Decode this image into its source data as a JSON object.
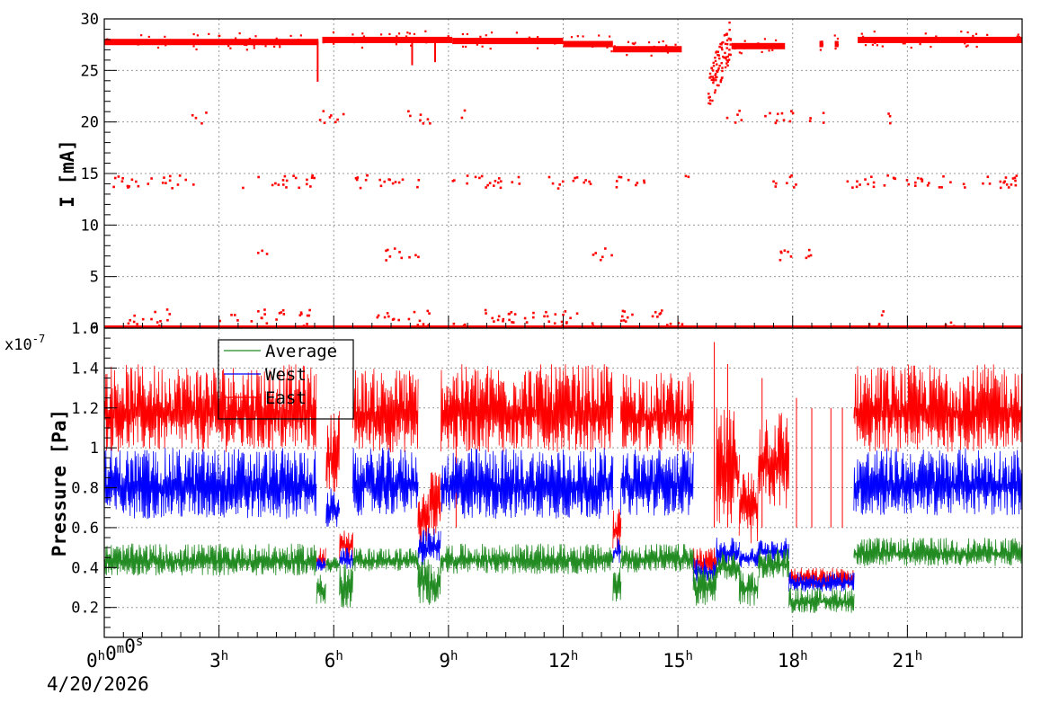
{
  "chart_data": [
    {
      "type": "scatter",
      "panel": "top",
      "ylabel": "I [mA]",
      "ylim": [
        0,
        30
      ],
      "yticks": [
        "0",
        "5",
        "10",
        "15",
        "20",
        "25",
        "30"
      ],
      "x_unit": "hours",
      "xlim": [
        0,
        24
      ],
      "grid": true,
      "series": [
        {
          "color": "#ff0000",
          "baseline_segments": [
            {
              "x": [
                0.0,
                5.6
              ],
              "y": 27.8
            },
            {
              "x": [
                5.7,
                9.1
              ],
              "y": 28.0
            },
            {
              "x": [
                9.1,
                12.0
              ],
              "y": 27.9
            },
            {
              "x": [
                12.0,
                13.3
              ],
              "y": 27.6
            },
            {
              "x": [
                13.3,
                15.1
              ],
              "y": 27.1
            },
            {
              "x": [
                16.4,
                17.8
              ],
              "y": 27.4
            },
            {
              "x": [
                18.7,
                18.8
              ],
              "y": 27.6
            },
            {
              "x": [
                19.1,
                19.2
              ],
              "y": 27.6
            },
            {
              "x": [
                19.7,
                24.0
              ],
              "y": 28.0
            }
          ],
          "dips": [
            {
              "x": 5.58,
              "y": 23.9
            },
            {
              "x": 8.05,
              "y": 25.5
            },
            {
              "x": 8.65,
              "y": 25.8
            }
          ],
          "transient": {
            "x": [
              15.8,
              16.4
            ],
            "y": [
              22.0,
              27.0
            ]
          },
          "zero_line": {
            "x": [
              0,
              24
            ],
            "y": 0
          },
          "bands": [
            {
              "y": 1.0,
              "x": [
                [
                  0.4,
                  1.8
                ],
                [
                  3.0,
                  5.4
                ],
                [
                  7.0,
                  8.6
                ],
                [
                  9.0,
                  10.8
                ],
                [
                  11.0,
                  13.0
                ],
                [
                  13.5,
                  15.3
                ],
                [
                  20.0,
                  20.5
                ],
                [
                  22.0,
                  22.3
                ]
              ]
            },
            {
              "y": 7.2,
              "x": [
                [
                  4.0,
                  4.3
                ],
                [
                  7.3,
                  8.3
                ],
                [
                  12.7,
                  13.3
                ],
                [
                  17.5,
                  18.5
                ]
              ]
            },
            {
              "y": 14.2,
              "x": [
                [
                  0.2,
                  2.5
                ],
                [
                  3.6,
                  5.5
                ],
                [
                  6.5,
                  8.3
                ],
                [
                  9.1,
                  11.0
                ],
                [
                  11.6,
                  12.8
                ],
                [
                  13.3,
                  14.2
                ],
                [
                  15.2,
                  15.4
                ],
                [
                  17.5,
                  18.3
                ],
                [
                  19.3,
                  24.0
                ]
              ]
            },
            {
              "y": 20.5,
              "x": [
                [
                  2.3,
                  2.7
                ],
                [
                  5.5,
                  6.3
                ],
                [
                  7.9,
                  8.6
                ],
                [
                  9.3,
                  9.5
                ],
                [
                  16.2,
                  16.7
                ],
                [
                  17.1,
                  18.1
                ],
                [
                  18.3,
                  18.5
                ],
                [
                  18.8,
                  19.0
                ],
                [
                  20.5,
                  20.8
                ]
              ]
            }
          ]
        }
      ]
    },
    {
      "type": "line",
      "panel": "bottom",
      "ylabel": "Pressure [Pa]",
      "y_multiplier": "x10",
      "y_multiplier_exp": "-7",
      "ylim": [
        0.05,
        1.6
      ],
      "yticks": [
        "0.2",
        "0.4",
        "0.6",
        "0.8",
        "1",
        "1.2",
        "1.4",
        "1.6"
      ],
      "x_unit": "hours",
      "xlim": [
        0,
        24
      ],
      "xticks": [
        {
          "h": "0",
          "m": "0",
          "s": "0"
        },
        {
          "h": "3"
        },
        {
          "h": "6"
        },
        {
          "h": "9"
        },
        {
          "h": "12"
        },
        {
          "h": "15"
        },
        {
          "h": "18"
        },
        {
          "h": "21"
        }
      ],
      "x_date": "4/20/2026",
      "grid": true,
      "legend": "top-left",
      "series": [
        {
          "name": "Average",
          "color": "#228b22",
          "segments": [
            {
              "x": [
                0.0,
                5.55
              ],
              "range": [
                0.33,
                0.52
              ]
            },
            {
              "x": [
                5.55,
                5.8
              ],
              "range": [
                0.16,
                0.4
              ]
            },
            {
              "x": [
                5.8,
                6.15
              ],
              "range": [
                0.36,
                0.46
              ]
            },
            {
              "x": [
                6.15,
                6.5
              ],
              "range": [
                0.16,
                0.42
              ]
            },
            {
              "x": [
                6.5,
                8.2
              ],
              "range": [
                0.36,
                0.5
              ]
            },
            {
              "x": [
                8.2,
                8.5
              ],
              "range": [
                0.18,
                0.45
              ]
            },
            {
              "x": [
                8.5,
                8.8
              ],
              "range": [
                0.17,
                0.45
              ]
            },
            {
              "x": [
                8.8,
                13.3
              ],
              "range": [
                0.34,
                0.52
              ]
            },
            {
              "x": [
                13.3,
                13.5
              ],
              "range": [
                0.2,
                0.4
              ]
            },
            {
              "x": [
                13.5,
                15.4
              ],
              "range": [
                0.35,
                0.52
              ]
            },
            {
              "x": [
                15.4,
                16.0
              ],
              "range": [
                0.16,
                0.42
              ]
            },
            {
              "x": [
                16.0,
                16.6
              ],
              "range": [
                0.3,
                0.48
              ]
            },
            {
              "x": [
                16.6,
                17.1
              ],
              "range": [
                0.17,
                0.4
              ]
            },
            {
              "x": [
                17.1,
                17.9
              ],
              "range": [
                0.32,
                0.5
              ]
            },
            {
              "x": [
                17.9,
                19.6
              ],
              "range": [
                0.15,
                0.3
              ]
            },
            {
              "x": [
                19.6,
                24.0
              ],
              "range": [
                0.38,
                0.55
              ]
            }
          ]
        },
        {
          "name": "West",
          "color": "#0000ff",
          "segments": [
            {
              "x": [
                0.0,
                5.55
              ],
              "range": [
                0.58,
                1.0
              ]
            },
            {
              "x": [
                5.55,
                5.8
              ],
              "range": [
                0.37,
                0.45
              ]
            },
            {
              "x": [
                5.8,
                6.15
              ],
              "range": [
                0.55,
                0.8
              ]
            },
            {
              "x": [
                6.15,
                6.5
              ],
              "range": [
                0.37,
                0.5
              ]
            },
            {
              "x": [
                6.5,
                8.2
              ],
              "range": [
                0.6,
                1.0
              ]
            },
            {
              "x": [
                8.2,
                8.5
              ],
              "range": [
                0.37,
                0.6
              ]
            },
            {
              "x": [
                8.5,
                8.8
              ],
              "range": [
                0.4,
                0.6
              ]
            },
            {
              "x": [
                8.8,
                13.3
              ],
              "range": [
                0.58,
                1.0
              ]
            },
            {
              "x": [
                13.3,
                13.5
              ],
              "range": [
                0.4,
                0.55
              ]
            },
            {
              "x": [
                13.5,
                15.4
              ],
              "range": [
                0.6,
                1.0
              ]
            },
            {
              "x": [
                15.4,
                16.0
              ],
              "range": [
                0.3,
                0.45
              ]
            },
            {
              "x": [
                16.0,
                16.6
              ],
              "range": [
                0.38,
                0.55
              ]
            },
            {
              "x": [
                16.6,
                17.1
              ],
              "range": [
                0.38,
                0.5
              ]
            },
            {
              "x": [
                17.1,
                17.9
              ],
              "range": [
                0.4,
                0.55
              ]
            },
            {
              "x": [
                17.9,
                19.6
              ],
              "range": [
                0.26,
                0.38
              ]
            },
            {
              "x": [
                19.6,
                24.0
              ],
              "range": [
                0.6,
                1.0
              ]
            }
          ]
        },
        {
          "name": "East",
          "color": "#ff0000",
          "segments": [
            {
              "x": [
                0.0,
                5.55
              ],
              "range": [
                0.9,
                1.42
              ]
            },
            {
              "x": [
                5.55,
                5.8
              ],
              "range": [
                0.37,
                0.5
              ]
            },
            {
              "x": [
                5.8,
                6.15
              ],
              "range": [
                0.7,
                1.2
              ]
            },
            {
              "x": [
                6.15,
                6.5
              ],
              "range": [
                0.4,
                0.6
              ]
            },
            {
              "x": [
                6.5,
                8.2
              ],
              "range": [
                0.9,
                1.4
              ]
            },
            {
              "x": [
                8.2,
                8.5
              ],
              "range": [
                0.45,
                0.8
              ]
            },
            {
              "x": [
                8.5,
                8.8
              ],
              "range": [
                0.5,
                0.9
              ]
            },
            {
              "x": [
                8.8,
                13.3
              ],
              "range": [
                0.9,
                1.42
              ]
            },
            {
              "x": [
                13.3,
                13.5
              ],
              "range": [
                0.45,
                0.7
              ]
            },
            {
              "x": [
                13.5,
                15.4
              ],
              "range": [
                0.9,
                1.38
              ]
            },
            {
              "x": [
                15.4,
                16.0
              ],
              "range": [
                0.33,
                0.5
              ]
            },
            {
              "x": [
                16.0,
                16.6
              ],
              "range": [
                0.5,
                1.2
              ]
            },
            {
              "x": [
                16.6,
                17.1
              ],
              "range": [
                0.45,
                0.9
              ]
            },
            {
              "x": [
                17.1,
                17.9
              ],
              "range": [
                0.6,
                1.2
              ]
            },
            {
              "x": [
                17.9,
                19.6
              ],
              "range": [
                0.28,
                0.4
              ]
            },
            {
              "x": [
                19.6,
                24.0
              ],
              "range": [
                0.9,
                1.42
              ]
            }
          ],
          "spikes": [
            {
              "x": 15.95,
              "y": 1.53
            },
            {
              "x": 16.3,
              "y": 1.42
            },
            {
              "x": 17.2,
              "y": 1.35
            },
            {
              "x": 18.1,
              "y": 1.25
            },
            {
              "x": 18.5,
              "y": 1.2
            },
            {
              "x": 19.0,
              "y": 1.2
            },
            {
              "x": 19.3,
              "y": 1.2
            },
            {
              "x": 9.2,
              "y": 1.35
            }
          ]
        }
      ]
    }
  ]
}
